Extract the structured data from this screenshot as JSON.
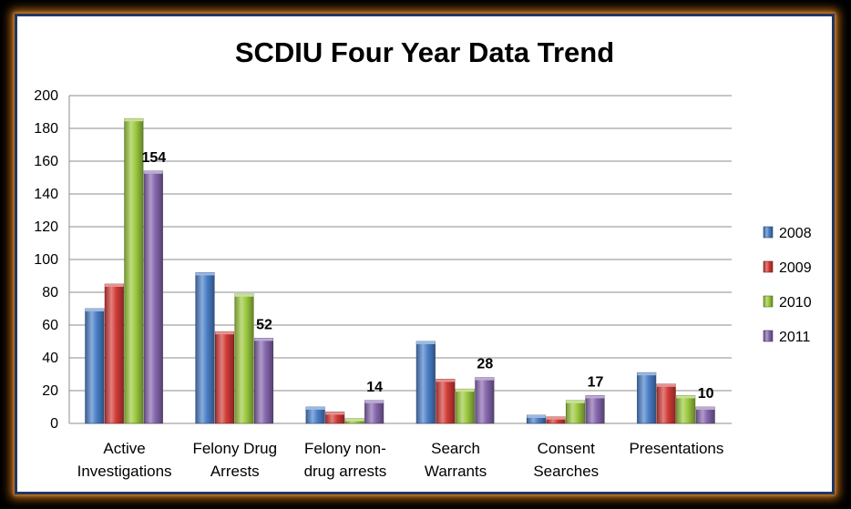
{
  "chart_data": {
    "type": "bar",
    "title": "SCDIU Four Year Data Trend",
    "xlabel": "",
    "ylabel": "",
    "ylim": [
      0,
      200
    ],
    "yticks": [
      0,
      20,
      40,
      60,
      80,
      100,
      120,
      140,
      160,
      180,
      200
    ],
    "grid": true,
    "legend_position": "right",
    "categories": [
      [
        "Active",
        "Investigations"
      ],
      [
        "Felony Drug",
        "Arrests"
      ],
      [
        "Felony non-",
        "drug arrests"
      ],
      [
        "Search",
        "Warrants"
      ],
      [
        "Consent",
        "Searches"
      ],
      [
        "Presentations"
      ]
    ],
    "series": [
      {
        "name": "2008",
        "color": "#4a7fc8",
        "values": [
          70,
          92,
          10,
          50,
          5,
          31
        ]
      },
      {
        "name": "2009",
        "color": "#d23b37",
        "values": [
          85,
          56,
          7,
          27,
          4,
          24
        ]
      },
      {
        "name": "2010",
        "color": "#9cc93f",
        "values": [
          186,
          79,
          3,
          21,
          14,
          17
        ]
      },
      {
        "name": "2011",
        "color": "#8566ad",
        "values": [
          154,
          52,
          14,
          28,
          17,
          10
        ]
      }
    ],
    "data_labels": {
      "series": "2011",
      "values": [
        "154",
        "52",
        "14",
        "28",
        "17",
        "10"
      ]
    }
  }
}
